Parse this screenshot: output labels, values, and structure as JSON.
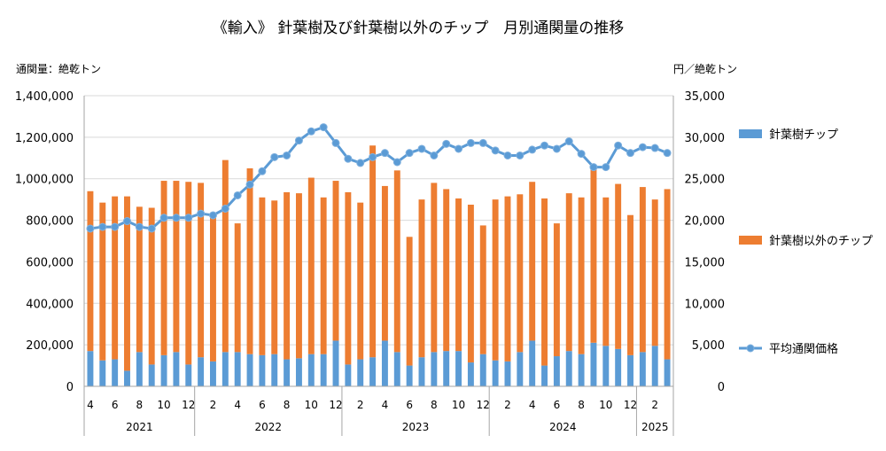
{
  "chart_data": {
    "type": "bar",
    "title": "《輸入》 針葉樹及び針葉樹以外のチップ　月別通関量の推移",
    "left_axis_unit": "通関量：絶乾トン",
    "right_axis_unit": "円／絶乾トン",
    "ylim_left": [
      0,
      1400000
    ],
    "ylim_right": [
      0,
      35000
    ],
    "yticks_left": [
      "0",
      "200,000",
      "400,000",
      "600,000",
      "800,000",
      "1,000,000",
      "1,200,000",
      "1,400,000"
    ],
    "yticks_right": [
      "0",
      "5,000",
      "10,000",
      "15,000",
      "20,000",
      "25,000",
      "30,000",
      "35,000"
    ],
    "grid": true,
    "legend_position": "right",
    "stacked": true,
    "months": [
      4,
      5,
      6,
      7,
      8,
      9,
      10,
      11,
      12,
      1,
      2,
      3,
      4,
      5,
      6,
      7,
      8,
      9,
      10,
      11,
      12,
      1,
      2,
      3,
      4,
      5,
      6,
      7,
      8,
      9,
      10,
      11,
      12,
      1,
      2,
      3,
      4,
      5,
      6,
      7,
      8,
      9,
      10,
      11,
      12,
      1,
      2,
      3
    ],
    "month_labels": [
      "4",
      "",
      "6",
      "",
      "8",
      "",
      "10",
      "",
      "12",
      "",
      "2",
      "",
      "4",
      "",
      "6",
      "",
      "8",
      "",
      "10",
      "",
      "12",
      "",
      "2",
      "",
      "4",
      "",
      "6",
      "",
      "8",
      "",
      "10",
      "",
      "12",
      "",
      "2",
      "",
      "4",
      "",
      "6",
      "",
      "8",
      "",
      "10",
      "",
      "12",
      "",
      "2",
      ""
    ],
    "years": [
      {
        "label": "2021",
        "count": 9
      },
      {
        "label": "2022",
        "count": 12
      },
      {
        "label": "2023",
        "count": 12
      },
      {
        "label": "2024",
        "count": 12
      },
      {
        "label": "2025",
        "count": 3
      }
    ],
    "series": [
      {
        "name": "針葉樹チップ",
        "kind": "bar",
        "axis": "left",
        "color": "#5B9BD5",
        "values": [
          170000,
          125000,
          130000,
          75000,
          165000,
          105000,
          150000,
          165000,
          105000,
          140000,
          120000,
          165000,
          165000,
          155000,
          150000,
          155000,
          130000,
          135000,
          155000,
          155000,
          220000,
          105000,
          130000,
          140000,
          220000,
          165000,
          100000,
          140000,
          165000,
          170000,
          170000,
          115000,
          155000,
          125000,
          120000,
          165000,
          220000,
          100000,
          145000,
          170000,
          155000,
          210000,
          195000,
          180000,
          150000,
          165000,
          195000,
          130000
        ]
      },
      {
        "name": "針葉樹以外のチップ",
        "kind": "bar",
        "axis": "left",
        "color": "#ED7D31",
        "values": [
          770000,
          760000,
          785000,
          840000,
          700000,
          755000,
          840000,
          825000,
          880000,
          840000,
          700000,
          925000,
          620000,
          895000,
          760000,
          740000,
          805000,
          795000,
          850000,
          755000,
          770000,
          830000,
          755000,
          1020000,
          745000,
          875000,
          620000,
          760000,
          815000,
          780000,
          735000,
          760000,
          620000,
          775000,
          795000,
          760000,
          765000,
          805000,
          640000,
          760000,
          755000,
          850000,
          715000,
          795000,
          675000,
          795000,
          705000,
          820000
        ]
      },
      {
        "name": "平均通関価格",
        "kind": "line",
        "axis": "right",
        "color": "#5B9BD5",
        "values": [
          19000,
          19200,
          19200,
          19900,
          19200,
          19000,
          20300,
          20300,
          20300,
          20800,
          20600,
          21400,
          23000,
          24300,
          25900,
          27600,
          27800,
          29600,
          30700,
          31200,
          29300,
          27400,
          26900,
          27600,
          28100,
          27000,
          28100,
          28600,
          27800,
          29200,
          28600,
          29300,
          29300,
          28400,
          27800,
          27800,
          28500,
          29000,
          28600,
          29500,
          28000,
          26400,
          26400,
          29000,
          28100,
          28800,
          28700,
          28100
        ]
      }
    ]
  }
}
